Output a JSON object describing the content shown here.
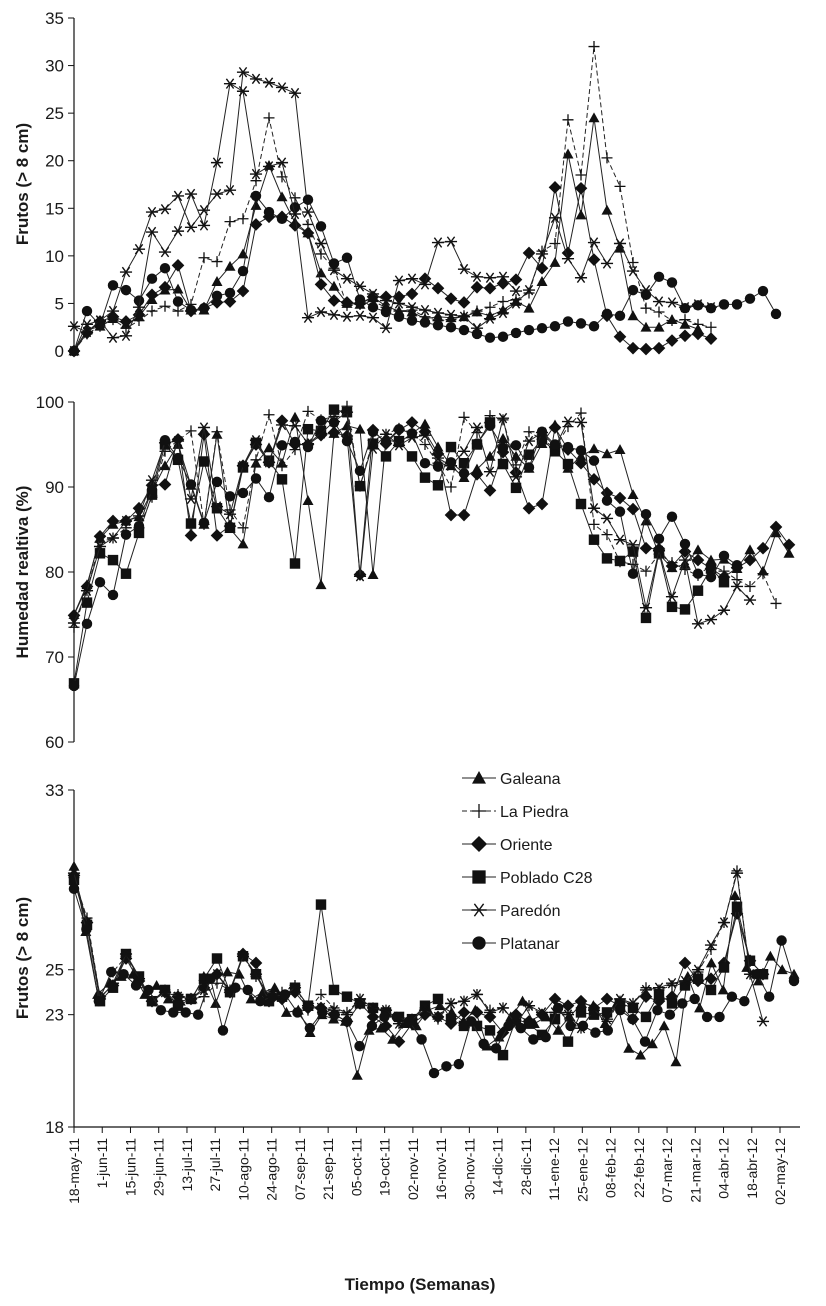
{
  "x_axis_title": "Tiempo (Semanas)",
  "x_tick_labels": [
    "18-may-11",
    "1-jun-11",
    "15-jun-11",
    "29-jun-11",
    "13-jul-11",
    "27-jul-11",
    "10-ago-11",
    "24-ago-11",
    "07-sep-11",
    "21-sep-11",
    "05-oct-11",
    "19-oct-11",
    "02-nov-11",
    "16-nov-11",
    "30-nov-11",
    "14-dic-11",
    "28-dic-11",
    "11-ene-12",
    "25-ene-12",
    "08-feb-12",
    "22-feb-12",
    "07-mar-12",
    "21-mar-12",
    "04-abr-12",
    "18-abr-12",
    "02-may-12"
  ],
  "legend": [
    "Galeana",
    "La Piedra",
    "Oriente",
    "Poblado C28",
    "Paredón",
    "Platanar"
  ],
  "chart_data": [
    {
      "type": "line",
      "panel": "top",
      "title": "",
      "xlabel": "",
      "ylabel": "Frutos (> 8 cm)",
      "ylim": [
        0,
        35
      ],
      "yticks": [
        0,
        5,
        10,
        15,
        20,
        25,
        30,
        35
      ],
      "series": [
        {
          "name": "Galeana",
          "values": [
            0,
            2.2,
            2.6,
            3.4,
            2.8,
            3.6,
            5.4,
            6.4,
            6.5,
            4.3,
            4.3,
            7.3,
            8.9,
            10.2,
            15.3,
            19.5,
            16.2,
            13.5,
            12.4,
            8.2,
            6.8,
            5,
            4.9,
            5.7,
            4.7,
            4.2,
            4.1,
            3.4,
            3.6,
            3.5,
            3.6,
            4.1,
            3.7,
            4.3,
            5.2,
            4.5,
            7.3,
            9.3,
            20.7,
            14.3,
            24.5,
            14.8,
            10.8,
            3.7,
            2.5,
            2.5,
            3.3,
            2.8,
            2.3
          ]
        },
        {
          "name": "La Piedra",
          "values": [
            0,
            1.8,
            2.6,
            3.3,
            2.4,
            3.2,
            4.2,
            4.7,
            4.2,
            4.9,
            9.8,
            9.4,
            13.6,
            13.9,
            17.9,
            24.5,
            18.3,
            16.1,
            13.3,
            10.2,
            8.7,
            4.8,
            4.9,
            5.2,
            4.6,
            4.2,
            4.3,
            3.6,
            3.2,
            3.3,
            3.7,
            4.2,
            4.6,
            5.2,
            5.4,
            6.1,
            10.5,
            11.3,
            24.3,
            18.5,
            32,
            20.3,
            17.3,
            9.3,
            4.5,
            4.1,
            3.2,
            3.3,
            2.8,
            2.5
          ]
        },
        {
          "name": "Oriente",
          "values": [
            0,
            1.9,
            3.1,
            3.6,
            3.1,
            3.8,
            5.9,
            6.7,
            9,
            4.2,
            4.5,
            5.1,
            5.2,
            6.3,
            13.3,
            14.1,
            14.1,
            13.2,
            12.4,
            7,
            5.3,
            5.1,
            5,
            5.7,
            5.7,
            5.7,
            6,
            7.6,
            6.6,
            5.5,
            5.1,
            6.7,
            6.6,
            7.1,
            7.5,
            10.3,
            8.7,
            17.2,
            10.3,
            17.1,
            9.6,
            3.7,
            1.5,
            0.3,
            0.2,
            0.3,
            1.1,
            1.6,
            1.8,
            1.3
          ]
        },
        {
          "name": "Poblado C28",
          "values": []
        },
        {
          "name": "Paredón",
          "values": [
            0,
            2.8,
            3.2,
            4.2,
            8.3,
            10.7,
            14.6,
            14.9,
            16.3,
            13,
            14.8,
            16.5,
            16.9,
            29.3,
            28.6,
            28.2,
            27.7,
            27.1,
            14.6,
            11.3,
            8.5,
            7.6,
            6.8,
            6,
            5.3,
            5,
            4.6,
            4.3,
            4,
            3.8,
            3.6,
            2.4,
            3.4,
            4,
            5,
            6.4,
            10.2,
            14,
            9.7,
            7.7,
            11.4,
            9.2,
            11.3,
            8.4,
            6.4,
            5.2,
            5.1,
            4.6,
            4.9,
            4.6
          ]
        },
        {
          "name": "Platanar",
          "values": [
            0,
            4.2,
            2.7,
            6.9,
            6.4,
            5.3,
            7.6,
            8.7,
            5.2,
            4.3,
            4.5,
            5.8,
            6.1,
            8.4,
            16.3,
            14.6,
            13.9,
            15.1,
            15.9,
            13.1,
            9.2,
            9.8,
            5.4,
            4.6,
            4.1,
            3.6,
            3.2,
            3,
            2.7,
            2.5,
            2.2,
            1.8,
            1.4,
            1.5,
            1.9,
            2.2,
            2.4,
            2.6,
            3.1,
            2.9,
            2.6,
            3.9,
            3.7,
            6.4,
            5.9,
            7.8,
            7.2,
            4.5,
            4.8,
            4.5,
            4.9,
            4.9,
            5.5,
            6.3,
            3.9
          ]
        },
        {
          "name": "Paredón (star markers)",
          "values": [
            2.6,
            2,
            3.2,
            1.4,
            1.6,
            4.6,
            12.5,
            10.4,
            12.6,
            16.5,
            13.2,
            19.8,
            28.1,
            27.3,
            18.6,
            19.4,
            19.8,
            14.4,
            3.5,
            4.1,
            3.8,
            3.6,
            3.7,
            3.5,
            2.4,
            7.4,
            7.6,
            7,
            11.4,
            11.5,
            8.6,
            7.8,
            7.7,
            7.8,
            6.3
          ]
        }
      ]
    },
    {
      "type": "line",
      "panel": "middle",
      "title": "",
      "xlabel": "",
      "ylabel": "Humedad realtiva (%)",
      "ylim": [
        60,
        100
      ],
      "yticks": [
        60,
        70,
        80,
        90,
        100
      ],
      "series": [
        {
          "name": "Galeana",
          "values": [
            75,
            78.5,
            84,
            85.6,
            86,
            86.5,
            89.5,
            92.5,
            95,
            90.2,
            85.6,
            96.2,
            85.1,
            83.3,
            92.8,
            94.6,
            92.8,
            98.2,
            88.4,
            78.5,
            96.3,
            97.2,
            96.8,
            79.7,
            95.6,
            95.2,
            96.3,
            97.4,
            94.7,
            92.5,
            91.1,
            92.1,
            93.6,
            95.7,
            93.6,
            92.2,
            95.1,
            97.3,
            92.2,
            93.6,
            94.5,
            93.9,
            94.4,
            89.1,
            86,
            82.1,
            80.5,
            80.9,
            82.6,
            81.4,
            81.5,
            80.4,
            82.6,
            80.1,
            84.6,
            82.2
          ]
        },
        {
          "name": "La Piedra",
          "values": [
            73.5,
            77.8,
            83.5,
            84,
            85.2,
            85.2,
            88.8,
            94.2,
            95.5,
            96.6,
            85.6,
            96.5,
            87.3,
            85.2,
            93.2,
            98.5,
            92.5,
            94.4,
            98.9,
            97.9,
            98.3,
            99.5,
            90.1,
            95.5,
            96.2,
            96.9,
            96.4,
            95,
            92.8,
            90,
            98.2,
            96.4,
            98.4,
            97.9,
            92.6,
            96.5,
            95.6,
            94.6,
            97.1,
            98.7,
            85.6,
            84.4,
            81.2,
            80.9,
            80.1,
            82.1,
            81.1,
            80.3,
            79.6,
            80.8,
            80.1,
            79.1,
            78.3,
            79.8,
            76.3
          ]
        },
        {
          "name": "Oriente",
          "values": [
            74.9,
            78.3,
            84.2,
            86,
            86,
            87.5,
            90.2,
            90.3,
            95.6,
            84.3,
            96.2,
            84.3,
            85.4,
            92.5,
            95,
            92.9,
            97.8,
            95,
            95,
            96.1,
            96.4,
            96,
            79.7,
            96.7,
            95.1,
            96.7,
            97.6,
            96.5,
            93.9,
            86.7,
            86.7,
            91.5,
            89.6,
            94.1,
            91.7,
            87.5,
            88,
            97,
            94.4,
            92.8,
            90.9,
            89.3,
            88.7,
            87.4,
            82.8,
            82.7,
            80.7,
            82.4,
            81.4,
            80.4,
            79.4,
            80.5,
            81.4,
            82.8,
            85.3,
            83.2
          ]
        },
        {
          "name": "Poblado C28",
          "values": [
            66.9,
            76.4,
            82.2,
            81.4,
            79.8,
            84.6,
            89.1,
            95,
            93.2,
            85.7,
            93,
            87.5,
            85.2,
            92.3,
            95.2,
            93.1,
            90.9,
            81,
            96.8,
            96.6,
            99.1,
            98.8,
            90.1,
            95.1,
            93.6,
            95.4,
            93.6,
            91.1,
            90.2,
            94.7,
            92.8,
            95,
            97.6,
            92.7,
            89.9,
            93.8,
            95.6,
            94.2,
            92.7,
            88,
            83.8,
            81.6,
            81.3,
            82.4,
            74.6,
            82.3,
            75.9,
            75.6,
            77.8,
            80.4,
            78.8
          ]
        },
        {
          "name": "Paredón",
          "values": [
            74,
            77.8,
            83,
            84,
            86,
            86.6,
            90.8,
            95.2,
            95.4,
            88.6,
            97,
            87.7,
            86.8,
            92.5,
            95.5,
            92.9,
            97.3,
            97.2,
            95.1,
            96.3,
            97.7,
            98.8,
            79.5,
            94.5,
            96.2,
            94.9,
            95.8,
            96.1,
            93.4,
            92.5,
            94.2,
            97,
            91.8,
            98.1,
            91.2,
            95.4,
            96.4,
            94.7,
            97.7,
            97.6,
            87.5,
            86.3,
            83.8,
            83.2,
            75.8,
            82.5,
            77.1,
            81.4,
            73.9,
            74.4,
            75.5,
            78.3,
            76.7
          ]
        },
        {
          "name": "Platanar",
          "values": [
            66.6,
            73.9,
            78.8,
            77.3,
            84.4,
            85.4,
            89.7,
            95.5,
            93.4,
            90.3,
            85.8,
            90.6,
            88.9,
            89.3,
            91,
            88.8,
            94.9,
            95.3,
            94.7,
            97.8,
            97.6,
            95.4,
            91.9,
            96.5,
            95.3,
            96.8,
            96.3,
            92.8,
            92.4,
            92.9,
            91.6,
            95.1,
            97.2,
            94.6,
            94.9,
            92.3,
            96.5,
            95,
            94.7,
            94.3,
            93.1,
            88.4,
            87.1,
            79.8,
            86.8,
            83.9,
            86.5,
            83.3,
            79.8,
            79.4,
            81.9,
            80.8
          ]
        }
      ]
    },
    {
      "type": "line",
      "panel": "bottom",
      "title": "",
      "xlabel": "Tiempo (Semanas)",
      "ylabel": "Frutos (> 8 cm)",
      "ylim": [
        18,
        33
      ],
      "yticks": [
        18,
        23,
        25,
        33
      ],
      "series": [
        {
          "name": "Galeana",
          "values": [
            29.6,
            26.7,
            23.9,
            24.4,
            24.7,
            24.8,
            23.9,
            24.3,
            23.7,
            23.6,
            23.7,
            24.7,
            23.5,
            24.9,
            24.8,
            23.7,
            24,
            24.2,
            23.1,
            23.2,
            22.2,
            23,
            22.8,
            22.7,
            20.3,
            22.3,
            22.4,
            21.9,
            22.6,
            22.5,
            23.2,
            23.4,
            23.1,
            22.7,
            23.2,
            21.6,
            22,
            22.9,
            23.6,
            22.6,
            22.9,
            22.3,
            22.9,
            23.5,
            23.4,
            22.6,
            23.5,
            21.5,
            21.2,
            21.7,
            22.5,
            20.9,
            24.7,
            23.3,
            25.3,
            24.1,
            28.3,
            25.1,
            24.5,
            25.6,
            25,
            24.8
          ]
        },
        {
          "name": "La Piedra",
          "values": [
            29.1,
            27.3,
            23.8,
            24.9,
            25.6,
            24.6,
            23.6,
            24.1,
            23.9,
            23.7,
            23.8,
            24.4,
            24.1,
            25.6,
            24.7,
            23.9,
            24,
            24.3,
            23.2,
            23.9,
            23.3,
            23.1,
            23.7,
            23.3,
            23.2,
            22.6,
            22.8,
            23.3,
            22.8,
            23.5,
            23.6,
            23.9,
            23.2,
            23.3,
            22.6,
            23.4,
            23,
            23.1,
            23.1,
            22.4,
            23.2,
            22.7,
            23.6,
            23.5,
            24.2,
            24.1,
            24.3,
            24.4,
            24.9,
            25.9,
            27.1,
            29.4,
            24.8
          ]
        },
        {
          "name": "Oriente",
          "values": [
            29.2,
            27.1,
            23.8,
            24.3,
            25.5,
            24.5,
            23.6,
            24,
            23.8,
            23.7,
            24.2,
            24.8,
            24,
            25.7,
            25.3,
            23.6,
            23.7,
            24,
            23.3,
            23.3,
            23,
            22.7,
            23.5,
            22.9,
            22.5,
            21.8,
            22.6,
            23,
            22.9,
            22.6,
            23.1,
            23.1,
            22.9,
            22.2,
            23,
            22.7,
            23,
            23.7,
            23.4,
            23.6,
            23.3,
            23.7,
            23.4,
            22.8,
            23.8,
            23.6,
            23.8,
            25.3,
            24.5,
            24.6,
            25.3,
            27.5,
            25.4,
            24.8
          ]
        },
        {
          "name": "Poblado C28",
          "values": [
            29,
            27,
            23.6,
            24.2,
            25.7,
            24.7,
            23.6,
            24.1,
            23.4,
            23.7,
            24.6,
            25.5,
            24,
            25.6,
            24.8,
            23.6,
            23.8,
            24.2,
            23.4,
            27.9,
            24.1,
            23.8,
            23.5,
            23.3,
            23.1,
            22.9,
            22.8,
            23.4,
            23.7,
            22.8,
            22.5,
            22.5,
            22.3,
            21.2,
            22.8,
            22.6,
            22.1,
            22.8,
            21.8,
            23.1,
            23,
            23.1,
            23.5,
            23.3,
            22.9,
            23.9,
            23.5,
            24.3,
            24.6,
            24.1,
            25.1,
            27.8,
            25.4,
            24.8
          ]
        },
        {
          "name": "Paredón",
          "values": [
            29.3,
            27.1,
            23.7,
            24.4,
            25.7,
            24.6,
            23.6,
            24,
            23.8,
            23.7,
            24.1,
            24.8,
            24.1,
            25.6,
            24.8,
            23.8,
            23.8,
            24.2,
            23.4,
            23.3,
            23.2,
            23,
            23.7,
            23.3,
            23.2,
            22.6,
            22.8,
            23.2,
            22.9,
            23.5,
            23.6,
            23.9,
            23.1,
            23.3,
            22.6,
            23.4,
            23.1,
            23.1,
            23,
            22.4,
            23.2,
            22.8,
            23.7,
            23.5,
            24.1,
            24.2,
            24.4,
            24.5,
            25,
            26.1,
            27.1,
            29.3,
            24.8,
            22.7
          ]
        },
        {
          "name": "Platanar",
          "values": [
            28.6,
            26.8,
            23.6,
            24.9,
            24.8,
            24.3,
            24.1,
            23.2,
            23.1,
            23.1,
            23,
            24.6,
            22.3,
            24.2,
            24.1,
            23.6,
            23.8,
            23.9,
            23.1,
            22.4,
            23.1,
            23,
            22.7,
            21.6,
            22.5,
            22.9,
            22.9,
            22.7,
            21.9,
            20.4,
            20.7,
            20.8,
            22.7,
            21.7,
            21.5,
            22.5,
            22.4,
            21.9,
            22,
            23.3,
            22.5,
            22.5,
            22.2,
            22.3,
            23.2,
            22.8,
            21.8,
            23.2,
            23,
            23.5,
            23.7,
            22.9,
            22.9,
            23.8,
            23.6,
            24.8,
            23.8,
            26.3,
            24.5
          ]
        }
      ]
    }
  ]
}
